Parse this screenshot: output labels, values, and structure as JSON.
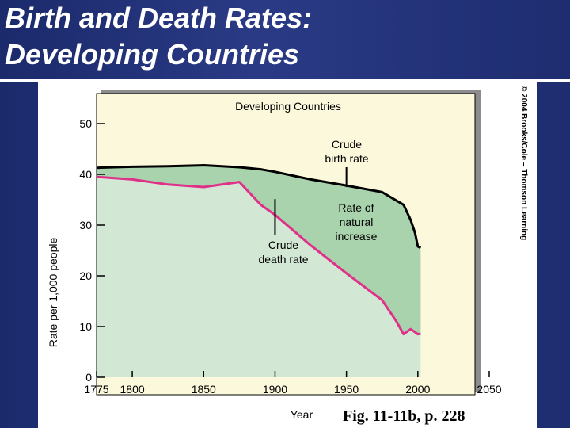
{
  "slide": {
    "title_line1": "Birth and Death Rates:",
    "title_line2": "Developing Countries",
    "figure_caption": "Fig. 11-11b, p. 228",
    "credit": "© 2004 Brooks/Cole – Thomson Learning"
  },
  "colors": {
    "birth_line": "#000000",
    "death_line": "#e0318a",
    "natural_increase_fill": "#a9d3ad",
    "death_area_fill": "#d2e8d5",
    "plot_background": "#fcf8dc"
  },
  "chart_data": {
    "type": "area",
    "title": "Developing Countries",
    "xlabel": "Year",
    "ylabel": "Rate per 1,000 people",
    "xlim": [
      1775,
      2050
    ],
    "ylim": [
      0,
      50
    ],
    "x_ticks": [
      "1775",
      "1800",
      "1850",
      "1900",
      "1950",
      "2000",
      "2050"
    ],
    "y_ticks": [
      "0",
      "10",
      "20",
      "30",
      "40",
      "50"
    ],
    "grid": false,
    "series": [
      {
        "name": "Crude birth rate",
        "x": [
          1775,
          1800,
          1825,
          1850,
          1875,
          1890,
          1900,
          1925,
          1950,
          1975,
          1990,
          1995,
          1998,
          2000,
          2002
        ],
        "y": [
          41.3,
          41.5,
          41.6,
          41.8,
          41.4,
          41.0,
          40.5,
          39.0,
          37.8,
          36.5,
          34.0,
          31.0,
          28.5,
          25.8,
          25.5
        ]
      },
      {
        "name": "Crude death rate",
        "x": [
          1775,
          1800,
          1825,
          1850,
          1875,
          1890,
          1900,
          1925,
          1950,
          1975,
          1985,
          1990,
          1995,
          2000,
          2002
        ],
        "y": [
          39.5,
          39.0,
          38.0,
          37.5,
          38.5,
          34.0,
          32.0,
          26.0,
          20.5,
          15.2,
          11.0,
          8.5,
          9.5,
          8.5,
          8.6
        ]
      }
    ],
    "annotations": [
      {
        "text_line1": "Crude",
        "text_line2": "birth rate",
        "x": 1950,
        "y": 37.8
      },
      {
        "text_line1": "Crude",
        "text_line2": "death rate",
        "x": 1900,
        "y": 32.0
      },
      {
        "text_line1": "Rate of",
        "text_line2": "natural",
        "text_line3": "increase"
      }
    ]
  }
}
